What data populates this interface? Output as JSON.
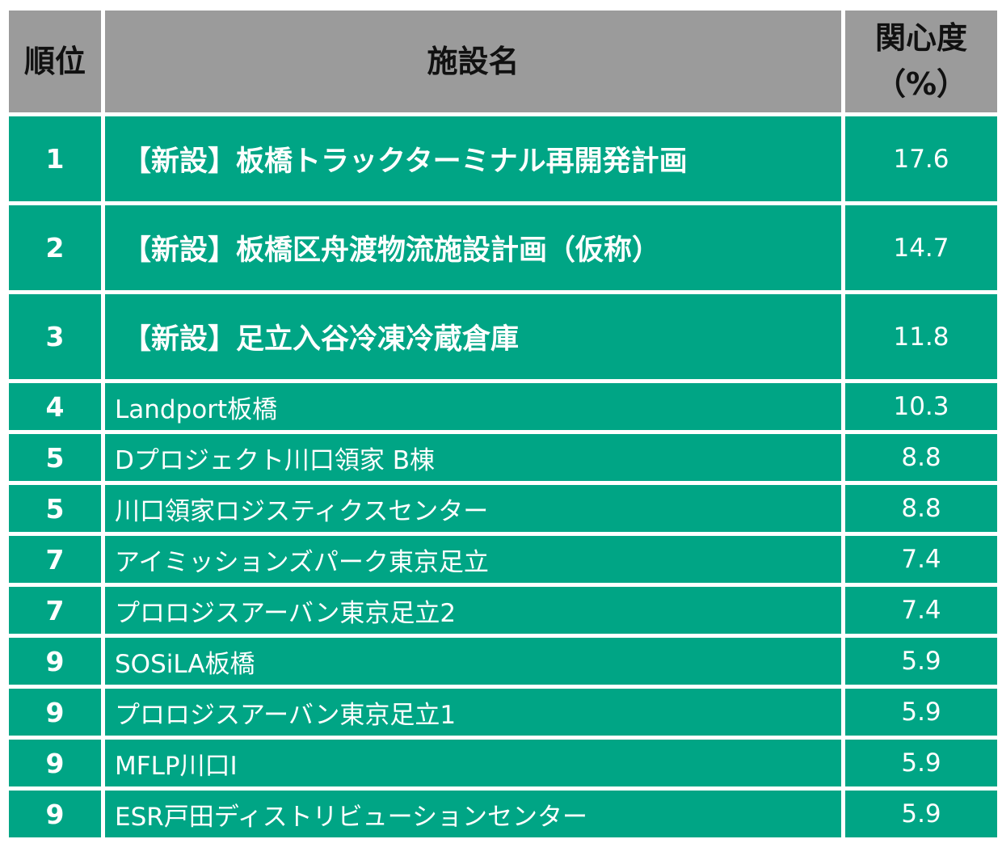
{
  "header": {
    "rank": "順位",
    "name": "施設名",
    "score_line1": "関心度",
    "score_line2": "（%）"
  },
  "rows": [
    {
      "rank": "1",
      "name": "【新設】板橋トラックターミナル再開発計画",
      "score": "17.6"
    },
    {
      "rank": "2",
      "name": "【新設】板橋区舟渡物流施設計画（仮称）",
      "score": "14.7"
    },
    {
      "rank": "3",
      "name": "【新設】足立入谷冷凍冷蔵倉庫",
      "score": "11.8"
    },
    {
      "rank": "4",
      "name": "Landport板橋",
      "score": "10.3"
    },
    {
      "rank": "5",
      "name": "Dプロジェクト川口領家 B棟",
      "score": "8.8"
    },
    {
      "rank": "5",
      "name": "川口領家ロジスティクスセンター",
      "score": "8.8"
    },
    {
      "rank": "7",
      "name": "アイミッションズパーク東京足立",
      "score": "7.4"
    },
    {
      "rank": "7",
      "name": "プロロジスアーバン東京足立2",
      "score": "7.4"
    },
    {
      "rank": "9",
      "name": "SOSiLA板橋",
      "score": "5.9"
    },
    {
      "rank": "9",
      "name": "プロロジスアーバン東京足立1",
      "score": "5.9"
    },
    {
      "rank": "9",
      "name": "MFLP川口I",
      "score": "5.9"
    },
    {
      "rank": "9",
      "name": "ESR戸田ディストリビューションセンター",
      "score": "5.9"
    }
  ],
  "colors": {
    "header_bg": "#9b9b9b",
    "row_bg": "#00a585",
    "row_text": "#ffffff",
    "header_text": "#111111"
  }
}
